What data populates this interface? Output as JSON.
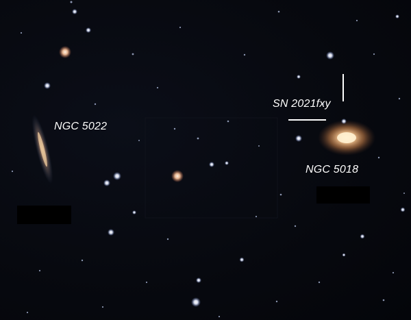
{
  "labels": {
    "ngc5022": "NGC 5022",
    "ngc5018": "NGC 5018",
    "supernova": "SN 2021fxy"
  },
  "colors": {
    "sky": "#05070d",
    "label": "#ffffff",
    "galaxy_core": "#ffd7a0",
    "star_blue": "#cfe0ff",
    "star_orange": "#ffc79a"
  }
}
